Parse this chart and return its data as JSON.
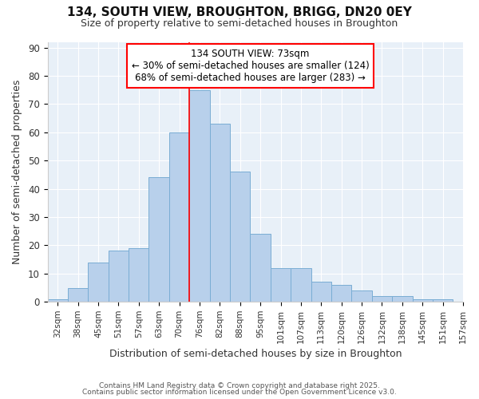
{
  "title1": "134, SOUTH VIEW, BROUGHTON, BRIGG, DN20 0EY",
  "title2": "Size of property relative to semi-detached houses in Broughton",
  "xlabel": "Distribution of semi-detached houses by size in Broughton",
  "ylabel": "Number of semi-detached properties",
  "bins": [
    "32sqm",
    "38sqm",
    "45sqm",
    "51sqm",
    "57sqm",
    "63sqm",
    "70sqm",
    "76sqm",
    "82sqm",
    "88sqm",
    "95sqm",
    "101sqm",
    "107sqm",
    "113sqm",
    "120sqm",
    "126sqm",
    "132sqm",
    "138sqm",
    "145sqm",
    "151sqm",
    "157sqm"
  ],
  "values": [
    1,
    5,
    14,
    18,
    19,
    44,
    60,
    75,
    63,
    46,
    24,
    12,
    12,
    7,
    6,
    4,
    2,
    2,
    1,
    1
  ],
  "bar_color": "#b8d0eb",
  "bar_edge_color": "#7aadd4",
  "red_line_index": 6.5,
  "annotation_line1": "134 SOUTH VIEW: 73sqm",
  "annotation_line2": "← 30% of semi-detached houses are smaller (124)",
  "annotation_line3": "68% of semi-detached houses are larger (283) →",
  "ylim": [
    0,
    92
  ],
  "yticks": [
    0,
    10,
    20,
    30,
    40,
    50,
    60,
    70,
    80,
    90
  ],
  "footer1": "Contains HM Land Registry data © Crown copyright and database right 2025.",
  "footer2": "Contains public sector information licensed under the Open Government Licence v3.0.",
  "bg_color": "#ffffff",
  "plot_bg_color": "#e8f0f8",
  "grid_color": "#ffffff"
}
